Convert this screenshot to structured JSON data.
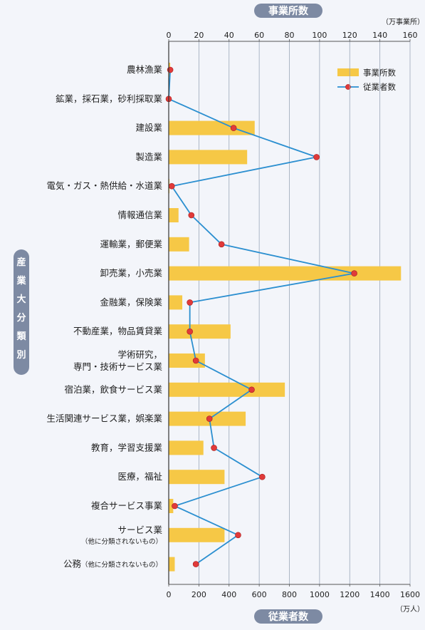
{
  "chart_data": {
    "type": "bar",
    "orientation": "horizontal",
    "top_axis_title": "事業所数",
    "top_axis_unit": "（万事業所）",
    "bottom_axis_title": "従業者数",
    "bottom_axis_unit": "（万人）",
    "side_label": "産業大分類別",
    "top_range": [
      0,
      160
    ],
    "top_ticks": [
      "0",
      "20",
      "40",
      "60",
      "80",
      "100",
      "120",
      "140",
      "160"
    ],
    "bottom_range": [
      0,
      1600
    ],
    "bottom_ticks": [
      "0",
      "200",
      "400",
      "600",
      "800",
      "1000",
      "1200",
      "1400",
      "1600"
    ],
    "grid": "vertical",
    "legend_position": "top-right",
    "categories": [
      {
        "label": "農林漁業",
        "sub": ""
      },
      {
        "label": "鉱業，採石業，砂利採取業",
        "sub": ""
      },
      {
        "label": "建設業",
        "sub": ""
      },
      {
        "label": "製造業",
        "sub": ""
      },
      {
        "label": "電気・ガス・熱供給・水道業",
        "sub": ""
      },
      {
        "label": "情報通信業",
        "sub": ""
      },
      {
        "label": "運輸業，郵便業",
        "sub": ""
      },
      {
        "label": "卸売業，小売業",
        "sub": ""
      },
      {
        "label": "金融業，保険業",
        "sub": ""
      },
      {
        "label": "不動産業，物品賃貸業",
        "sub": ""
      },
      {
        "label": "学術研究，",
        "label2": "専門・技術サービス業",
        "sub": ""
      },
      {
        "label": "宿泊業，飲食サービス業",
        "sub": ""
      },
      {
        "label": "生活関連サービス業，娯楽業",
        "sub": ""
      },
      {
        "label": "教育，学習支援業",
        "sub": ""
      },
      {
        "label": "医療，福祉",
        "sub": ""
      },
      {
        "label": "複合サービス事業",
        "sub": ""
      },
      {
        "label": "サービス業",
        "sub": "（他に分類されないもの）"
      },
      {
        "label": "公務",
        "sub": "（他に分類されないもの）",
        "inline": true
      }
    ],
    "series": [
      {
        "name": "事業所数",
        "kind": "bar",
        "axis": "top",
        "color": "#f6c846",
        "values": [
          1,
          0.2,
          57,
          52,
          0.5,
          6.5,
          13.5,
          154,
          9,
          41,
          24,
          77,
          51,
          23,
          37,
          3,
          37,
          4
        ]
      },
      {
        "name": "従業者数",
        "kind": "line",
        "axis": "bottom",
        "color": "#2b8fd0",
        "marker_color": "#e03a3a",
        "values": [
          10,
          0,
          430,
          980,
          20,
          150,
          350,
          1230,
          140,
          140,
          180,
          550,
          270,
          300,
          620,
          40,
          460,
          180
        ]
      }
    ]
  }
}
